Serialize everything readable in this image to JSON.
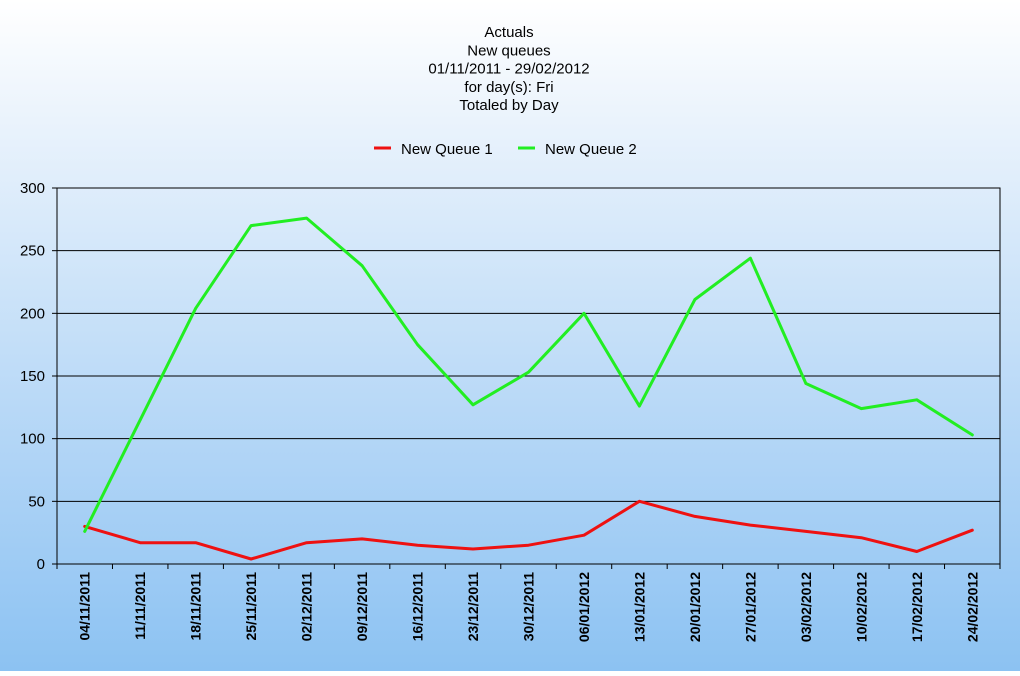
{
  "chart_data": {
    "type": "line",
    "title_lines": [
      "Actuals",
      "New queues",
      "01/11/2011 - 29/02/2012",
      "for day(s): Fri",
      "Totaled by Day"
    ],
    "xlabel": "",
    "ylabel": "",
    "ylim": [
      0,
      300
    ],
    "yticks": [
      0,
      50,
      100,
      150,
      200,
      250,
      300
    ],
    "grid": true,
    "legend_position": "top-center",
    "categories": [
      "04/11/2011",
      "11/11/2011",
      "18/11/2011",
      "25/11/2011",
      "02/12/2011",
      "09/12/2011",
      "16/12/2011",
      "23/12/2011",
      "30/12/2011",
      "06/01/2012",
      "13/01/2012",
      "20/01/2012",
      "27/01/2012",
      "03/02/2012",
      "10/02/2012",
      "17/02/2012",
      "24/02/2012"
    ],
    "series": [
      {
        "name": "New Queue 1",
        "color": "#ee1111",
        "values": [
          30,
          17,
          17,
          4,
          17,
          20,
          15,
          12,
          15,
          23,
          50,
          38,
          31,
          26,
          21,
          10,
          27
        ]
      },
      {
        "name": "New Queue 2",
        "color": "#22ee22",
        "values": [
          26,
          115,
          204,
          270,
          276,
          238,
          175,
          127,
          153,
          200,
          126,
          211,
          244,
          144,
          124,
          131,
          103
        ]
      }
    ]
  }
}
